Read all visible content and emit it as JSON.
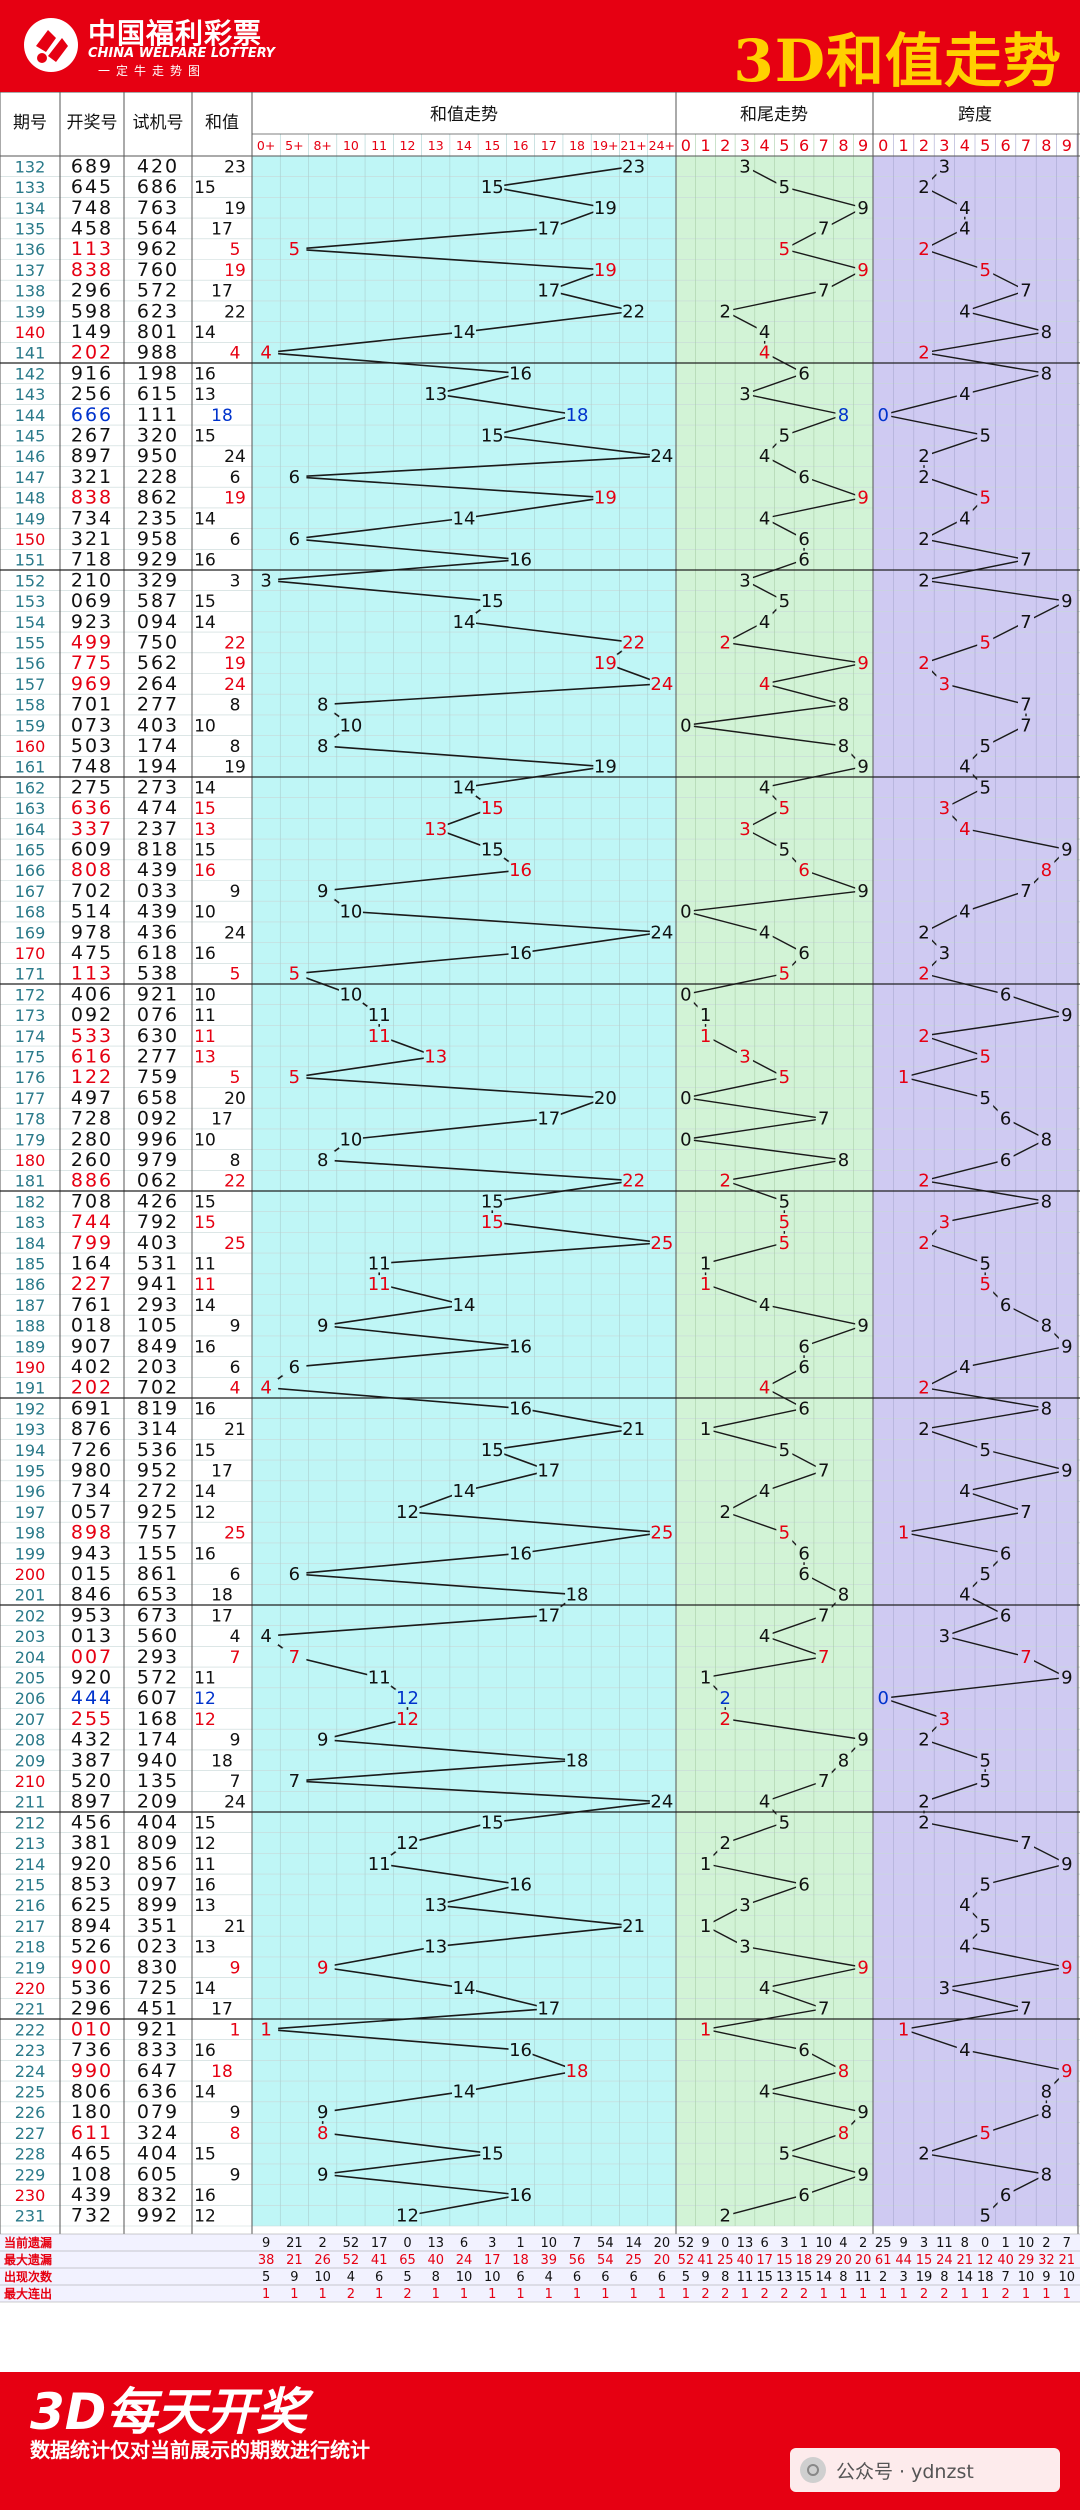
{
  "header": {
    "logo_cn": "中国福利彩票",
    "logo_en": "CHINA WELFARE LOTTERY",
    "logo_sub": "一定牛走势图",
    "title": "3D和值走势"
  },
  "footer": {
    "big": "3D每天开奖",
    "small": "数据统计仅对当前展示的期数进行统计",
    "watermark": "公众号 · ydnzst"
  },
  "colors": {
    "brand_red": "#e60012",
    "title_yellow": "#ffd000",
    "zone_sum": "#bff6f6",
    "zone_tail": "#d2f3d6",
    "zone_span": "#cfcaf2",
    "number_red": "#e60012",
    "number_blue": "#0033cc"
  },
  "chart_data": {
    "type": "table",
    "columns": {
      "issue": "期号",
      "draw": "开奖号",
      "test": "试机号",
      "sum": "和值",
      "sum_trend": "和值走势",
      "tail_trend": "和尾走势",
      "span_trend": "跨度"
    },
    "sum_axis": [
      "0+",
      "5+",
      "8+",
      "10",
      "11",
      "12",
      "13",
      "14",
      "15",
      "16",
      "17",
      "18",
      "19+",
      "21+",
      "24+"
    ],
    "tail_axis": [
      "0",
      "1",
      "2",
      "3",
      "4",
      "5",
      "6",
      "7",
      "8",
      "9"
    ],
    "span_axis": [
      "0",
      "1",
      "2",
      "3",
      "4",
      "5",
      "6",
      "7",
      "8",
      "9"
    ],
    "rows": [
      {
        "issue": "132",
        "draw": "689",
        "test": "420",
        "sum": 23,
        "tail": 3,
        "span": 3
      },
      {
        "issue": "133",
        "draw": "645",
        "test": "686",
        "sum": 15,
        "tail": 5,
        "span": 2
      },
      {
        "issue": "134",
        "draw": "748",
        "test": "763",
        "sum": 19,
        "tail": 9,
        "span": 4
      },
      {
        "issue": "135",
        "draw": "458",
        "test": "564",
        "sum": 17,
        "tail": 7,
        "span": 4
      },
      {
        "issue": "136",
        "draw": "113",
        "test": "962",
        "sum": 5,
        "tail": 5,
        "span": 2
      },
      {
        "issue": "137",
        "draw": "838",
        "test": "760",
        "sum": 19,
        "tail": 9,
        "span": 5
      },
      {
        "issue": "138",
        "draw": "296",
        "test": "572",
        "sum": 17,
        "tail": 7,
        "span": 7
      },
      {
        "issue": "139",
        "draw": "598",
        "test": "623",
        "sum": 22,
        "tail": 2,
        "span": 4
      },
      {
        "issue": "140",
        "draw": "149",
        "test": "801",
        "sum": 14,
        "tail": 4,
        "span": 8
      },
      {
        "issue": "141",
        "draw": "202",
        "test": "988",
        "sum": 4,
        "tail": 4,
        "span": 2
      },
      {
        "issue": "142",
        "draw": "916",
        "test": "198",
        "sum": 16,
        "tail": 6,
        "span": 8
      },
      {
        "issue": "143",
        "draw": "256",
        "test": "615",
        "sum": 13,
        "tail": 3,
        "span": 4
      },
      {
        "issue": "144",
        "draw": "666",
        "test": "111",
        "sum": 18,
        "tail": 8,
        "span": 0
      },
      {
        "issue": "145",
        "draw": "267",
        "test": "320",
        "sum": 15,
        "tail": 5,
        "span": 5
      },
      {
        "issue": "146",
        "draw": "897",
        "test": "950",
        "sum": 24,
        "tail": 4,
        "span": 2
      },
      {
        "issue": "147",
        "draw": "321",
        "test": "228",
        "sum": 6,
        "tail": 6,
        "span": 2
      },
      {
        "issue": "148",
        "draw": "838",
        "test": "862",
        "sum": 19,
        "tail": 9,
        "span": 5
      },
      {
        "issue": "149",
        "draw": "734",
        "test": "235",
        "sum": 14,
        "tail": 4,
        "span": 4
      },
      {
        "issue": "150",
        "draw": "321",
        "test": "958",
        "sum": 6,
        "tail": 6,
        "span": 2
      },
      {
        "issue": "151",
        "draw": "718",
        "test": "929",
        "sum": 16,
        "tail": 6,
        "span": 7
      },
      {
        "issue": "152",
        "draw": "210",
        "test": "329",
        "sum": 3,
        "tail": 3,
        "span": 2
      },
      {
        "issue": "153",
        "draw": "069",
        "test": "587",
        "sum": 15,
        "tail": 5,
        "span": 9
      },
      {
        "issue": "154",
        "draw": "923",
        "test": "094",
        "sum": 14,
        "tail": 4,
        "span": 7
      },
      {
        "issue": "155",
        "draw": "499",
        "test": "750",
        "sum": 22,
        "tail": 2,
        "span": 5
      },
      {
        "issue": "156",
        "draw": "775",
        "test": "562",
        "sum": 19,
        "tail": 9,
        "span": 2
      },
      {
        "issue": "157",
        "draw": "969",
        "test": "264",
        "sum": 24,
        "tail": 4,
        "span": 3
      },
      {
        "issue": "158",
        "draw": "701",
        "test": "277",
        "sum": 8,
        "tail": 8,
        "span": 7
      },
      {
        "issue": "159",
        "draw": "073",
        "test": "403",
        "sum": 10,
        "tail": 0,
        "span": 7
      },
      {
        "issue": "160",
        "draw": "503",
        "test": "174",
        "sum": 8,
        "tail": 8,
        "span": 5
      },
      {
        "issue": "161",
        "draw": "748",
        "test": "194",
        "sum": 19,
        "tail": 9,
        "span": 4
      },
      {
        "issue": "162",
        "draw": "275",
        "test": "273",
        "sum": 14,
        "tail": 4,
        "span": 5
      },
      {
        "issue": "163",
        "draw": "636",
        "test": "474",
        "sum": 15,
        "tail": 5,
        "span": 3
      },
      {
        "issue": "164",
        "draw": "337",
        "test": "237",
        "sum": 13,
        "tail": 3,
        "span": 4
      },
      {
        "issue": "165",
        "draw": "609",
        "test": "818",
        "sum": 15,
        "tail": 5,
        "span": 9
      },
      {
        "issue": "166",
        "draw": "808",
        "test": "439",
        "sum": 16,
        "tail": 6,
        "span": 8
      },
      {
        "issue": "167",
        "draw": "702",
        "test": "033",
        "sum": 9,
        "tail": 9,
        "span": 7
      },
      {
        "issue": "168",
        "draw": "514",
        "test": "439",
        "sum": 10,
        "tail": 0,
        "span": 4
      },
      {
        "issue": "169",
        "draw": "978",
        "test": "436",
        "sum": 24,
        "tail": 4,
        "span": 2
      },
      {
        "issue": "170",
        "draw": "475",
        "test": "618",
        "sum": 16,
        "tail": 6,
        "span": 3
      },
      {
        "issue": "171",
        "draw": "113",
        "test": "538",
        "sum": 5,
        "tail": 5,
        "span": 2
      },
      {
        "issue": "172",
        "draw": "406",
        "test": "921",
        "sum": 10,
        "tail": 0,
        "span": 6
      },
      {
        "issue": "173",
        "draw": "092",
        "test": "076",
        "sum": 11,
        "tail": 1,
        "span": 9
      },
      {
        "issue": "174",
        "draw": "533",
        "test": "630",
        "sum": 11,
        "tail": 1,
        "span": 2
      },
      {
        "issue": "175",
        "draw": "616",
        "test": "277",
        "sum": 13,
        "tail": 3,
        "span": 5
      },
      {
        "issue": "176",
        "draw": "122",
        "test": "759",
        "sum": 5,
        "tail": 5,
        "span": 1
      },
      {
        "issue": "177",
        "draw": "497",
        "test": "658",
        "sum": 20,
        "tail": 0,
        "span": 5
      },
      {
        "issue": "178",
        "draw": "728",
        "test": "092",
        "sum": 17,
        "tail": 7,
        "span": 6
      },
      {
        "issue": "179",
        "draw": "280",
        "test": "996",
        "sum": 10,
        "tail": 0,
        "span": 8
      },
      {
        "issue": "180",
        "draw": "260",
        "test": "979",
        "sum": 8,
        "tail": 8,
        "span": 6
      },
      {
        "issue": "181",
        "draw": "886",
        "test": "062",
        "sum": 22,
        "tail": 2,
        "span": 2
      },
      {
        "issue": "182",
        "draw": "708",
        "test": "426",
        "sum": 15,
        "tail": 5,
        "span": 8
      },
      {
        "issue": "183",
        "draw": "744",
        "test": "792",
        "sum": 15,
        "tail": 5,
        "span": 3
      },
      {
        "issue": "184",
        "draw": "799",
        "test": "403",
        "sum": 25,
        "tail": 5,
        "span": 2
      },
      {
        "issue": "185",
        "draw": "164",
        "test": "531",
        "sum": 11,
        "tail": 1,
        "span": 5
      },
      {
        "issue": "186",
        "draw": "227",
        "test": "941",
        "sum": 11,
        "tail": 1,
        "span": 5
      },
      {
        "issue": "187",
        "draw": "761",
        "test": "293",
        "sum": 14,
        "tail": 4,
        "span": 6
      },
      {
        "issue": "188",
        "draw": "018",
        "test": "105",
        "sum": 9,
        "tail": 9,
        "span": 8
      },
      {
        "issue": "189",
        "draw": "907",
        "test": "849",
        "sum": 16,
        "tail": 6,
        "span": 9
      },
      {
        "issue": "190",
        "draw": "402",
        "test": "203",
        "sum": 6,
        "tail": 6,
        "span": 4
      },
      {
        "issue": "191",
        "draw": "202",
        "test": "702",
        "sum": 4,
        "tail": 4,
        "span": 2
      },
      {
        "issue": "192",
        "draw": "691",
        "test": "819",
        "sum": 16,
        "tail": 6,
        "span": 8
      },
      {
        "issue": "193",
        "draw": "876",
        "test": "314",
        "sum": 21,
        "tail": 1,
        "span": 2
      },
      {
        "issue": "194",
        "draw": "726",
        "test": "536",
        "sum": 15,
        "tail": 5,
        "span": 5
      },
      {
        "issue": "195",
        "draw": "980",
        "test": "952",
        "sum": 17,
        "tail": 7,
        "span": 9
      },
      {
        "issue": "196",
        "draw": "734",
        "test": "272",
        "sum": 14,
        "tail": 4,
        "span": 4
      },
      {
        "issue": "197",
        "draw": "057",
        "test": "925",
        "sum": 12,
        "tail": 2,
        "span": 7
      },
      {
        "issue": "198",
        "draw": "898",
        "test": "757",
        "sum": 25,
        "tail": 5,
        "span": 1
      },
      {
        "issue": "199",
        "draw": "943",
        "test": "155",
        "sum": 16,
        "tail": 6,
        "span": 6
      },
      {
        "issue": "200",
        "draw": "015",
        "test": "861",
        "sum": 6,
        "tail": 6,
        "span": 5
      },
      {
        "issue": "201",
        "draw": "846",
        "test": "653",
        "sum": 18,
        "tail": 8,
        "span": 4
      },
      {
        "issue": "202",
        "draw": "953",
        "test": "673",
        "sum": 17,
        "tail": 7,
        "span": 6
      },
      {
        "issue": "203",
        "draw": "013",
        "test": "560",
        "sum": 4,
        "tail": 4,
        "span": 3
      },
      {
        "issue": "204",
        "draw": "007",
        "test": "293",
        "sum": 7,
        "tail": 7,
        "span": 7
      },
      {
        "issue": "205",
        "draw": "920",
        "test": "572",
        "sum": 11,
        "tail": 1,
        "span": 9
      },
      {
        "issue": "206",
        "draw": "444",
        "test": "607",
        "sum": 12,
        "tail": 2,
        "span": 0
      },
      {
        "issue": "207",
        "draw": "255",
        "test": "168",
        "sum": 12,
        "tail": 2,
        "span": 3
      },
      {
        "issue": "208",
        "draw": "432",
        "test": "174",
        "sum": 9,
        "tail": 9,
        "span": 2
      },
      {
        "issue": "209",
        "draw": "387",
        "test": "940",
        "sum": 18,
        "tail": 8,
        "span": 5
      },
      {
        "issue": "210",
        "draw": "520",
        "test": "135",
        "sum": 7,
        "tail": 7,
        "span": 5
      },
      {
        "issue": "211",
        "draw": "897",
        "test": "209",
        "sum": 24,
        "tail": 4,
        "span": 2
      },
      {
        "issue": "212",
        "draw": "456",
        "test": "404",
        "sum": 15,
        "tail": 5,
        "span": 2
      },
      {
        "issue": "213",
        "draw": "381",
        "test": "809",
        "sum": 12,
        "tail": 2,
        "span": 7
      },
      {
        "issue": "214",
        "draw": "920",
        "test": "856",
        "sum": 11,
        "tail": 1,
        "span": 9
      },
      {
        "issue": "215",
        "draw": "853",
        "test": "097",
        "sum": 16,
        "tail": 6,
        "span": 5
      },
      {
        "issue": "216",
        "draw": "625",
        "test": "899",
        "sum": 13,
        "tail": 3,
        "span": 4
      },
      {
        "issue": "217",
        "draw": "894",
        "test": "351",
        "sum": 21,
        "tail": 1,
        "span": 5
      },
      {
        "issue": "218",
        "draw": "526",
        "test": "023",
        "sum": 13,
        "tail": 3,
        "span": 4
      },
      {
        "issue": "219",
        "draw": "900",
        "test": "830",
        "sum": 9,
        "tail": 9,
        "span": 9
      },
      {
        "issue": "220",
        "draw": "536",
        "test": "725",
        "sum": 14,
        "tail": 4,
        "span": 3
      },
      {
        "issue": "221",
        "draw": "296",
        "test": "451",
        "sum": 17,
        "tail": 7,
        "span": 7
      },
      {
        "issue": "222",
        "draw": "010",
        "test": "921",
        "sum": 1,
        "tail": 1,
        "span": 1
      },
      {
        "issue": "223",
        "draw": "736",
        "test": "833",
        "sum": 16,
        "tail": 6,
        "span": 4
      },
      {
        "issue": "224",
        "draw": "990",
        "test": "647",
        "sum": 18,
        "tail": 8,
        "span": 9
      },
      {
        "issue": "225",
        "draw": "806",
        "test": "636",
        "sum": 14,
        "tail": 4,
        "span": 8
      },
      {
        "issue": "226",
        "draw": "180",
        "test": "079",
        "sum": 9,
        "tail": 9,
        "span": 8
      },
      {
        "issue": "227",
        "draw": "611",
        "test": "324",
        "sum": 8,
        "tail": 8,
        "span": 5
      },
      {
        "issue": "228",
        "draw": "465",
        "test": "404",
        "sum": 15,
        "tail": 5,
        "span": 2
      },
      {
        "issue": "229",
        "draw": "108",
        "test": "605",
        "sum": 9,
        "tail": 9,
        "span": 8
      },
      {
        "issue": "230",
        "draw": "439",
        "test": "832",
        "sum": 16,
        "tail": 6,
        "span": 6
      },
      {
        "issue": "231",
        "draw": "732",
        "test": "992",
        "sum": 12,
        "tail": 2,
        "span": 5
      }
    ],
    "red_issues": [
      "136",
      "137",
      "141",
      "148",
      "155",
      "156",
      "157",
      "163",
      "164",
      "166",
      "171",
      "174",
      "175",
      "176",
      "181",
      "183",
      "184",
      "186",
      "191",
      "198",
      "204",
      "207",
      "219",
      "222",
      "224",
      "227"
    ],
    "blue_issues": [
      "144",
      "206"
    ],
    "stats_labels": [
      "当前遗漏",
      "最大遗漏",
      "出现次数",
      "最大连出"
    ],
    "stats": {
      "sum": [
        [
          9,
          21,
          2,
          52,
          17,
          0,
          13,
          6,
          3,
          1,
          10,
          7,
          54,
          14,
          20
        ],
        [
          38,
          21,
          26,
          52,
          41,
          65,
          40,
          24,
          17,
          18,
          39,
          56,
          54,
          25,
          20
        ],
        [
          5,
          9,
          10,
          4,
          6,
          5,
          8,
          10,
          10,
          6,
          4,
          6,
          6,
          6,
          6
        ],
        [
          1,
          1,
          1,
          2,
          1,
          2,
          1,
          1,
          1,
          1,
          1,
          1,
          1,
          1,
          1
        ]
      ],
      "tail": [
        [
          52,
          9,
          0,
          13,
          6,
          3,
          1,
          10,
          4,
          2
        ],
        [
          52,
          41,
          25,
          40,
          17,
          15,
          18,
          29,
          20,
          20
        ],
        [
          5,
          9,
          8,
          11,
          15,
          13,
          15,
          14,
          8,
          11
        ],
        [
          1,
          2,
          2,
          1,
          2,
          2,
          2,
          1,
          1,
          1
        ]
      ],
      "span": [
        [
          25,
          9,
          3,
          11,
          8,
          0,
          1,
          10,
          2,
          7
        ],
        [
          61,
          44,
          15,
          24,
          21,
          12,
          40,
          29,
          32,
          21
        ],
        [
          2,
          3,
          19,
          8,
          14,
          18,
          7,
          10,
          9,
          10
        ],
        [
          1,
          1,
          2,
          2,
          1,
          1,
          2,
          1,
          1,
          1
        ]
      ]
    }
  }
}
